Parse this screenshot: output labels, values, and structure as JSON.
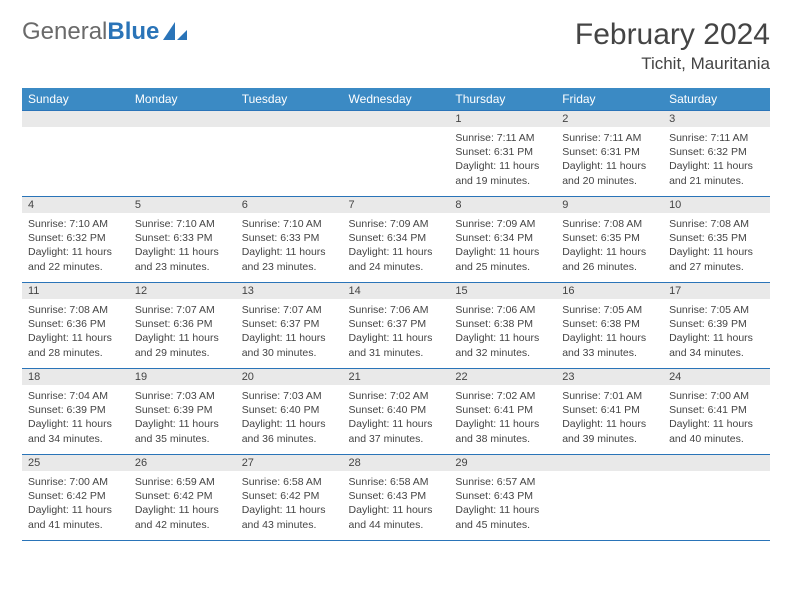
{
  "brand": {
    "part1": "General",
    "part2": "Blue"
  },
  "title": {
    "month": "February 2024",
    "location": "Tichit, Mauritania"
  },
  "calendar": {
    "header_bg": "#3b8ac4",
    "header_fg": "#ffffff",
    "row_border": "#2a74b8",
    "daynum_bg": "#e9e9e9",
    "text_color": "#444444",
    "font_size_body": 10.5,
    "days_of_week": [
      "Sunday",
      "Monday",
      "Tuesday",
      "Wednesday",
      "Thursday",
      "Friday",
      "Saturday"
    ],
    "weeks": [
      [
        null,
        null,
        null,
        null,
        {
          "n": "1",
          "sunrise": "7:11 AM",
          "sunset": "6:31 PM",
          "dl": "11 hours and 19 minutes."
        },
        {
          "n": "2",
          "sunrise": "7:11 AM",
          "sunset": "6:31 PM",
          "dl": "11 hours and 20 minutes."
        },
        {
          "n": "3",
          "sunrise": "7:11 AM",
          "sunset": "6:32 PM",
          "dl": "11 hours and 21 minutes."
        }
      ],
      [
        {
          "n": "4",
          "sunrise": "7:10 AM",
          "sunset": "6:32 PM",
          "dl": "11 hours and 22 minutes."
        },
        {
          "n": "5",
          "sunrise": "7:10 AM",
          "sunset": "6:33 PM",
          "dl": "11 hours and 23 minutes."
        },
        {
          "n": "6",
          "sunrise": "7:10 AM",
          "sunset": "6:33 PM",
          "dl": "11 hours and 23 minutes."
        },
        {
          "n": "7",
          "sunrise": "7:09 AM",
          "sunset": "6:34 PM",
          "dl": "11 hours and 24 minutes."
        },
        {
          "n": "8",
          "sunrise": "7:09 AM",
          "sunset": "6:34 PM",
          "dl": "11 hours and 25 minutes."
        },
        {
          "n": "9",
          "sunrise": "7:08 AM",
          "sunset": "6:35 PM",
          "dl": "11 hours and 26 minutes."
        },
        {
          "n": "10",
          "sunrise": "7:08 AM",
          "sunset": "6:35 PM",
          "dl": "11 hours and 27 minutes."
        }
      ],
      [
        {
          "n": "11",
          "sunrise": "7:08 AM",
          "sunset": "6:36 PM",
          "dl": "11 hours and 28 minutes."
        },
        {
          "n": "12",
          "sunrise": "7:07 AM",
          "sunset": "6:36 PM",
          "dl": "11 hours and 29 minutes."
        },
        {
          "n": "13",
          "sunrise": "7:07 AM",
          "sunset": "6:37 PM",
          "dl": "11 hours and 30 minutes."
        },
        {
          "n": "14",
          "sunrise": "7:06 AM",
          "sunset": "6:37 PM",
          "dl": "11 hours and 31 minutes."
        },
        {
          "n": "15",
          "sunrise": "7:06 AM",
          "sunset": "6:38 PM",
          "dl": "11 hours and 32 minutes."
        },
        {
          "n": "16",
          "sunrise": "7:05 AM",
          "sunset": "6:38 PM",
          "dl": "11 hours and 33 minutes."
        },
        {
          "n": "17",
          "sunrise": "7:05 AM",
          "sunset": "6:39 PM",
          "dl": "11 hours and 34 minutes."
        }
      ],
      [
        {
          "n": "18",
          "sunrise": "7:04 AM",
          "sunset": "6:39 PM",
          "dl": "11 hours and 34 minutes."
        },
        {
          "n": "19",
          "sunrise": "7:03 AM",
          "sunset": "6:39 PM",
          "dl": "11 hours and 35 minutes."
        },
        {
          "n": "20",
          "sunrise": "7:03 AM",
          "sunset": "6:40 PM",
          "dl": "11 hours and 36 minutes."
        },
        {
          "n": "21",
          "sunrise": "7:02 AM",
          "sunset": "6:40 PM",
          "dl": "11 hours and 37 minutes."
        },
        {
          "n": "22",
          "sunrise": "7:02 AM",
          "sunset": "6:41 PM",
          "dl": "11 hours and 38 minutes."
        },
        {
          "n": "23",
          "sunrise": "7:01 AM",
          "sunset": "6:41 PM",
          "dl": "11 hours and 39 minutes."
        },
        {
          "n": "24",
          "sunrise": "7:00 AM",
          "sunset": "6:41 PM",
          "dl": "11 hours and 40 minutes."
        }
      ],
      [
        {
          "n": "25",
          "sunrise": "7:00 AM",
          "sunset": "6:42 PM",
          "dl": "11 hours and 41 minutes."
        },
        {
          "n": "26",
          "sunrise": "6:59 AM",
          "sunset": "6:42 PM",
          "dl": "11 hours and 42 minutes."
        },
        {
          "n": "27",
          "sunrise": "6:58 AM",
          "sunset": "6:42 PM",
          "dl": "11 hours and 43 minutes."
        },
        {
          "n": "28",
          "sunrise": "6:58 AM",
          "sunset": "6:43 PM",
          "dl": "11 hours and 44 minutes."
        },
        {
          "n": "29",
          "sunrise": "6:57 AM",
          "sunset": "6:43 PM",
          "dl": "11 hours and 45 minutes."
        },
        null,
        null
      ]
    ],
    "labels": {
      "sunrise": "Sunrise:",
      "sunset": "Sunset:",
      "daylight": "Daylight:"
    }
  }
}
